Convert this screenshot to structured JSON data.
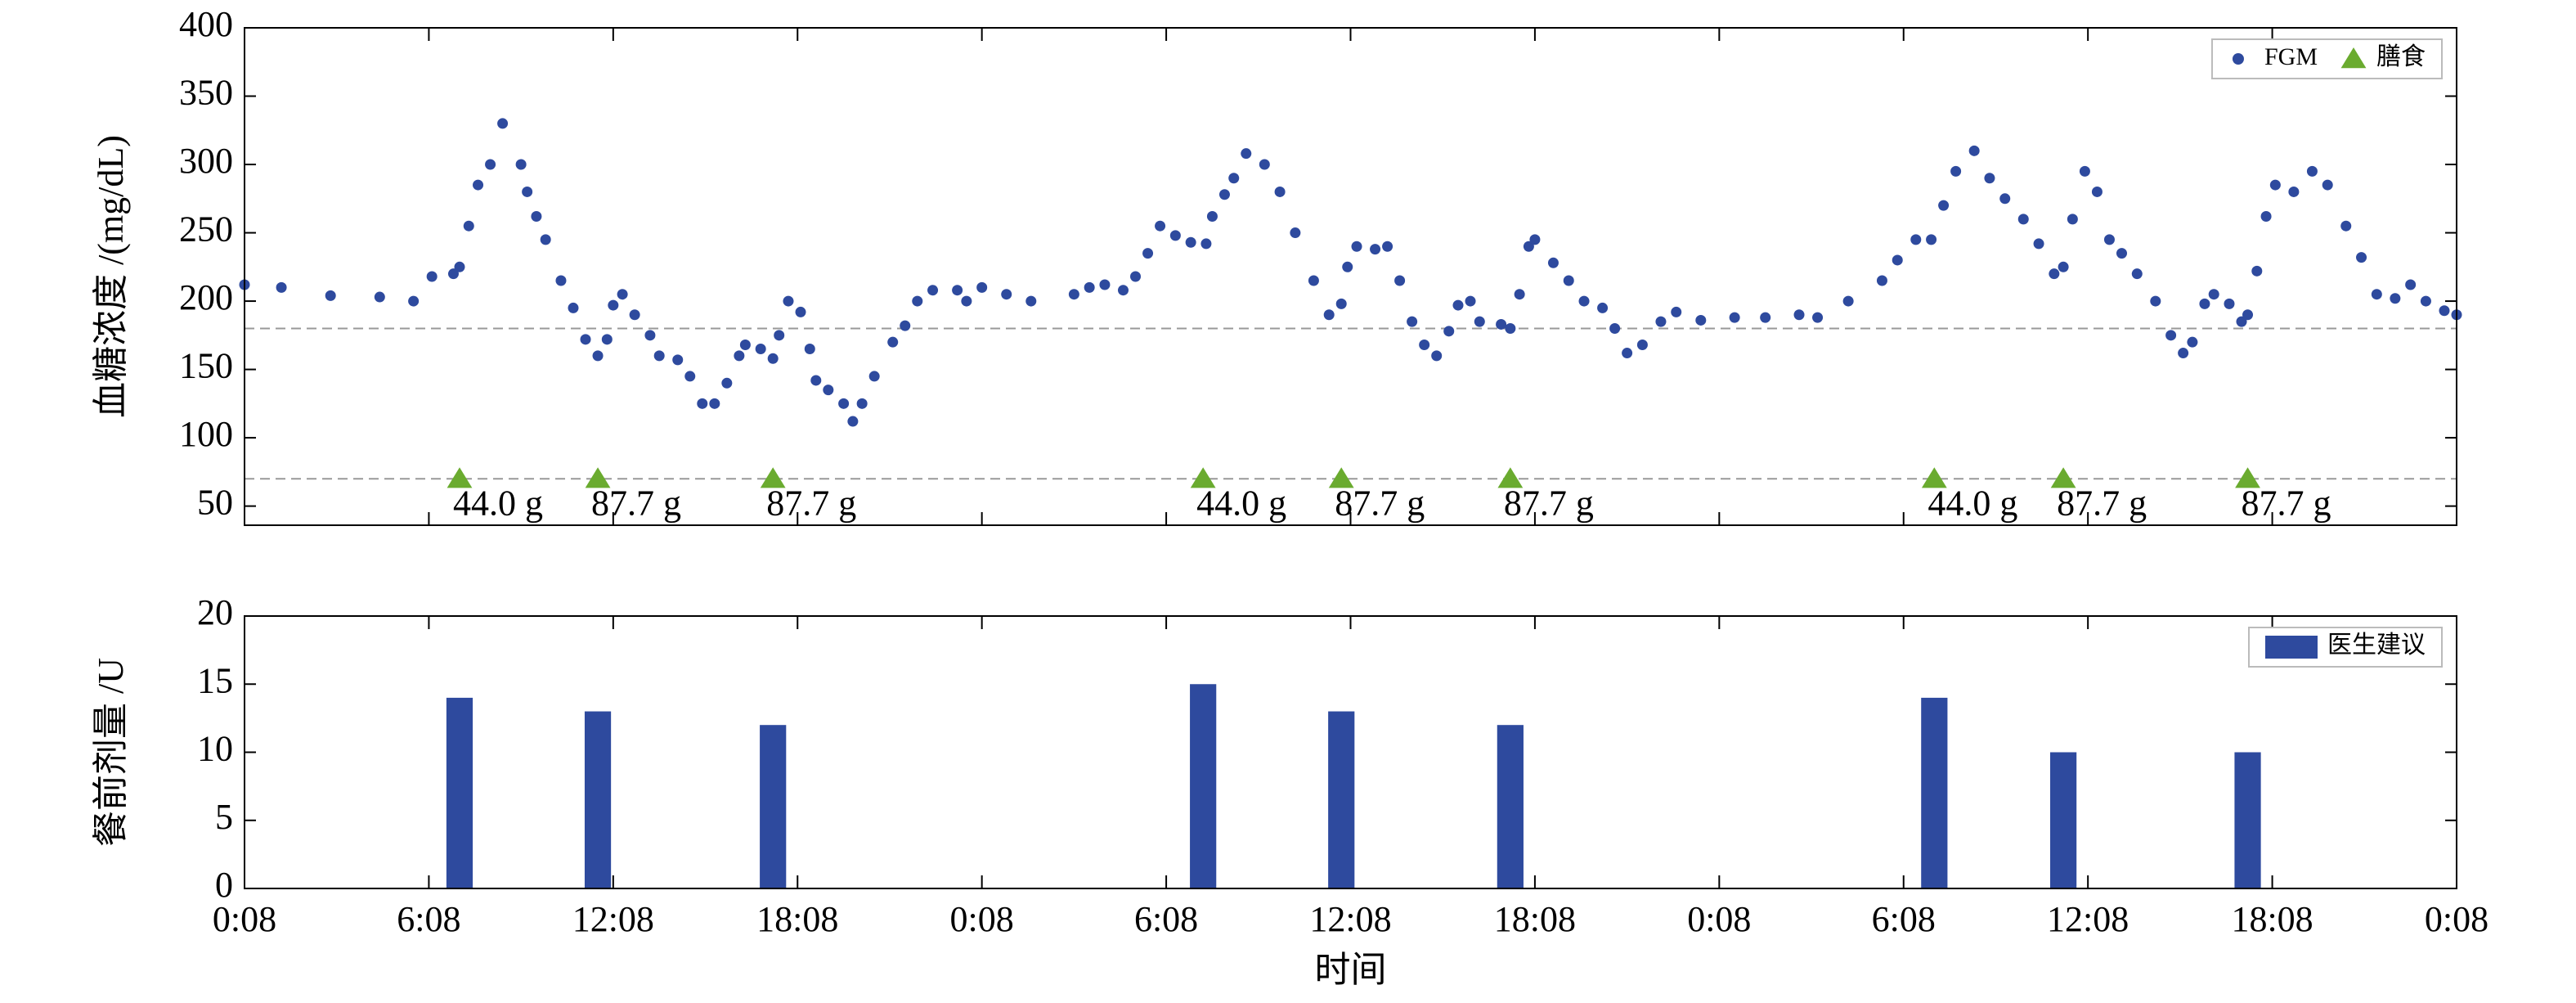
{
  "chart_data": [
    {
      "type": "scatter",
      "ylabel": "血糖浓度 /(mg/dL)",
      "xlim": [
        0,
        72
      ],
      "xticks": [
        0,
        6,
        12,
        18,
        24,
        30,
        36,
        42,
        48,
        54,
        60,
        66,
        72
      ],
      "ylim": [
        36,
        400
      ],
      "yticks": [
        50,
        100,
        150,
        200,
        250,
        300,
        350,
        400
      ],
      "hlines": [
        180,
        70
      ],
      "legend": "upper right",
      "series": [
        {
          "name": "FGM",
          "color": "#2e4a9e",
          "marker": "circle",
          "x": [
            0,
            1.2,
            2.8,
            4.4,
            5.5,
            6.1,
            6.8,
            7.0,
            7.3,
            7.6,
            8.0,
            8.4,
            9.0,
            9.2,
            9.5,
            9.8,
            10.3,
            10.7,
            11.1,
            11.5,
            11.8,
            12.0,
            12.3,
            12.7,
            13.2,
            13.5,
            14.1,
            14.5,
            14.9,
            15.3,
            15.7,
            16.1,
            16.3,
            16.8,
            17.2,
            17.4,
            17.7,
            18.1,
            18.4,
            18.6,
            19.0,
            19.5,
            19.8,
            20.1,
            20.5,
            21.1,
            21.5,
            21.9,
            22.4,
            23.2,
            23.5,
            24.0,
            24.8,
            25.6,
            27.0,
            27.5,
            28.0,
            28.6,
            29.0,
            29.4,
            29.8,
            30.3,
            30.8,
            31.3,
            31.5,
            31.9,
            32.2,
            32.6,
            33.2,
            33.7,
            34.2,
            34.8,
            35.3,
            35.7,
            35.9,
            36.2,
            36.8,
            37.2,
            37.6,
            38.0,
            38.4,
            38.8,
            39.2,
            39.5,
            39.9,
            40.2,
            40.9,
            41.2,
            41.5,
            41.8,
            42.0,
            42.6,
            43.1,
            43.6,
            44.2,
            44.6,
            45.0,
            45.5,
            46.1,
            46.6,
            47.4,
            48.5,
            49.5,
            50.6,
            51.2,
            52.2,
            53.3,
            53.8,
            54.4,
            54.9,
            55.3,
            55.7,
            56.3,
            56.8,
            57.3,
            57.9,
            58.4,
            58.9,
            59.2,
            59.5,
            59.9,
            60.3,
            60.7,
            61.1,
            61.6,
            62.2,
            62.7,
            63.1,
            63.4,
            63.8,
            64.1,
            64.6,
            65.0,
            65.2,
            65.5,
            65.8,
            66.1,
            66.7,
            67.3,
            67.8,
            68.4,
            68.9,
            69.4,
            70.0,
            70.5,
            71.0,
            71.6,
            72.0
          ],
          "values": [
            212,
            210,
            204,
            203,
            200,
            218,
            220,
            225,
            255,
            285,
            300,
            330,
            300,
            280,
            262,
            245,
            215,
            195,
            172,
            160,
            172,
            197,
            205,
            190,
            175,
            160,
            157,
            145,
            125,
            125,
            140,
            160,
            168,
            165,
            158,
            175,
            200,
            192,
            165,
            142,
            135,
            125,
            112,
            125,
            145,
            170,
            182,
            200,
            208,
            208,
            200,
            210,
            205,
            200,
            205,
            210,
            212,
            208,
            218,
            235,
            255,
            248,
            243,
            242,
            262,
            278,
            290,
            308,
            300,
            280,
            250,
            215,
            190,
            198,
            225,
            240,
            238,
            240,
            215,
            185,
            168,
            160,
            178,
            197,
            200,
            185,
            183,
            180,
            205,
            240,
            245,
            228,
            215,
            200,
            195,
            180,
            162,
            168,
            185,
            192,
            186,
            188,
            188,
            190,
            188,
            200,
            215,
            230,
            245,
            245,
            270,
            295,
            310,
            290,
            275,
            260,
            242,
            220,
            225,
            260,
            295,
            280,
            245,
            235,
            220,
            200,
            175,
            162,
            170,
            198,
            205,
            198,
            185,
            190,
            222,
            262,
            285,
            280,
            295,
            285,
            255,
            232,
            205,
            202,
            212,
            200,
            193,
            190
          ]
        },
        {
          "name": "膳食",
          "color": "#6aab2f",
          "marker": "triangle",
          "x": [
            7.0,
            11.5,
            17.2,
            31.2,
            35.7,
            41.2,
            55.0,
            59.2,
            65.2
          ],
          "values": [
            70,
            70,
            70,
            70,
            70,
            70,
            70,
            70,
            70
          ],
          "labels": [
            "44.0 g",
            "87.7 g",
            "87.7 g",
            "44.0 g",
            "87.7 g",
            "87.7 g",
            "44.0 g",
            "87.7 g",
            "87.7 g"
          ]
        }
      ]
    },
    {
      "type": "bar",
      "ylabel": "餐前剂量 /U",
      "xlabel": "时间",
      "xlim": [
        0,
        72
      ],
      "xticks": [
        {
          "value": 0,
          "label": "0:08"
        },
        {
          "value": 6,
          "label": "6:08"
        },
        {
          "value": 12,
          "label": "12:08"
        },
        {
          "value": 18,
          "label": "18:08"
        },
        {
          "value": 24,
          "label": "0:08"
        },
        {
          "value": 30,
          "label": "6:08"
        },
        {
          "value": 36,
          "label": "12:08"
        },
        {
          "value": 42,
          "label": "18:08"
        },
        {
          "value": 48,
          "label": "0:08"
        },
        {
          "value": 54,
          "label": "6:08"
        },
        {
          "value": 60,
          "label": "12:08"
        },
        {
          "value": 66,
          "label": "18:08"
        },
        {
          "value": 72,
          "label": "0:08"
        }
      ],
      "ylim": [
        0,
        20
      ],
      "yticks": [
        0,
        5,
        10,
        15,
        20
      ],
      "legend": "upper right",
      "series": [
        {
          "name": "医生建议",
          "color": "#2e4a9e",
          "x": [
            7.0,
            11.5,
            17.2,
            31.2,
            35.7,
            41.2,
            55.0,
            59.2,
            65.2
          ],
          "values": [
            14,
            13,
            12,
            15,
            13,
            12,
            14,
            10,
            10
          ]
        }
      ]
    }
  ]
}
